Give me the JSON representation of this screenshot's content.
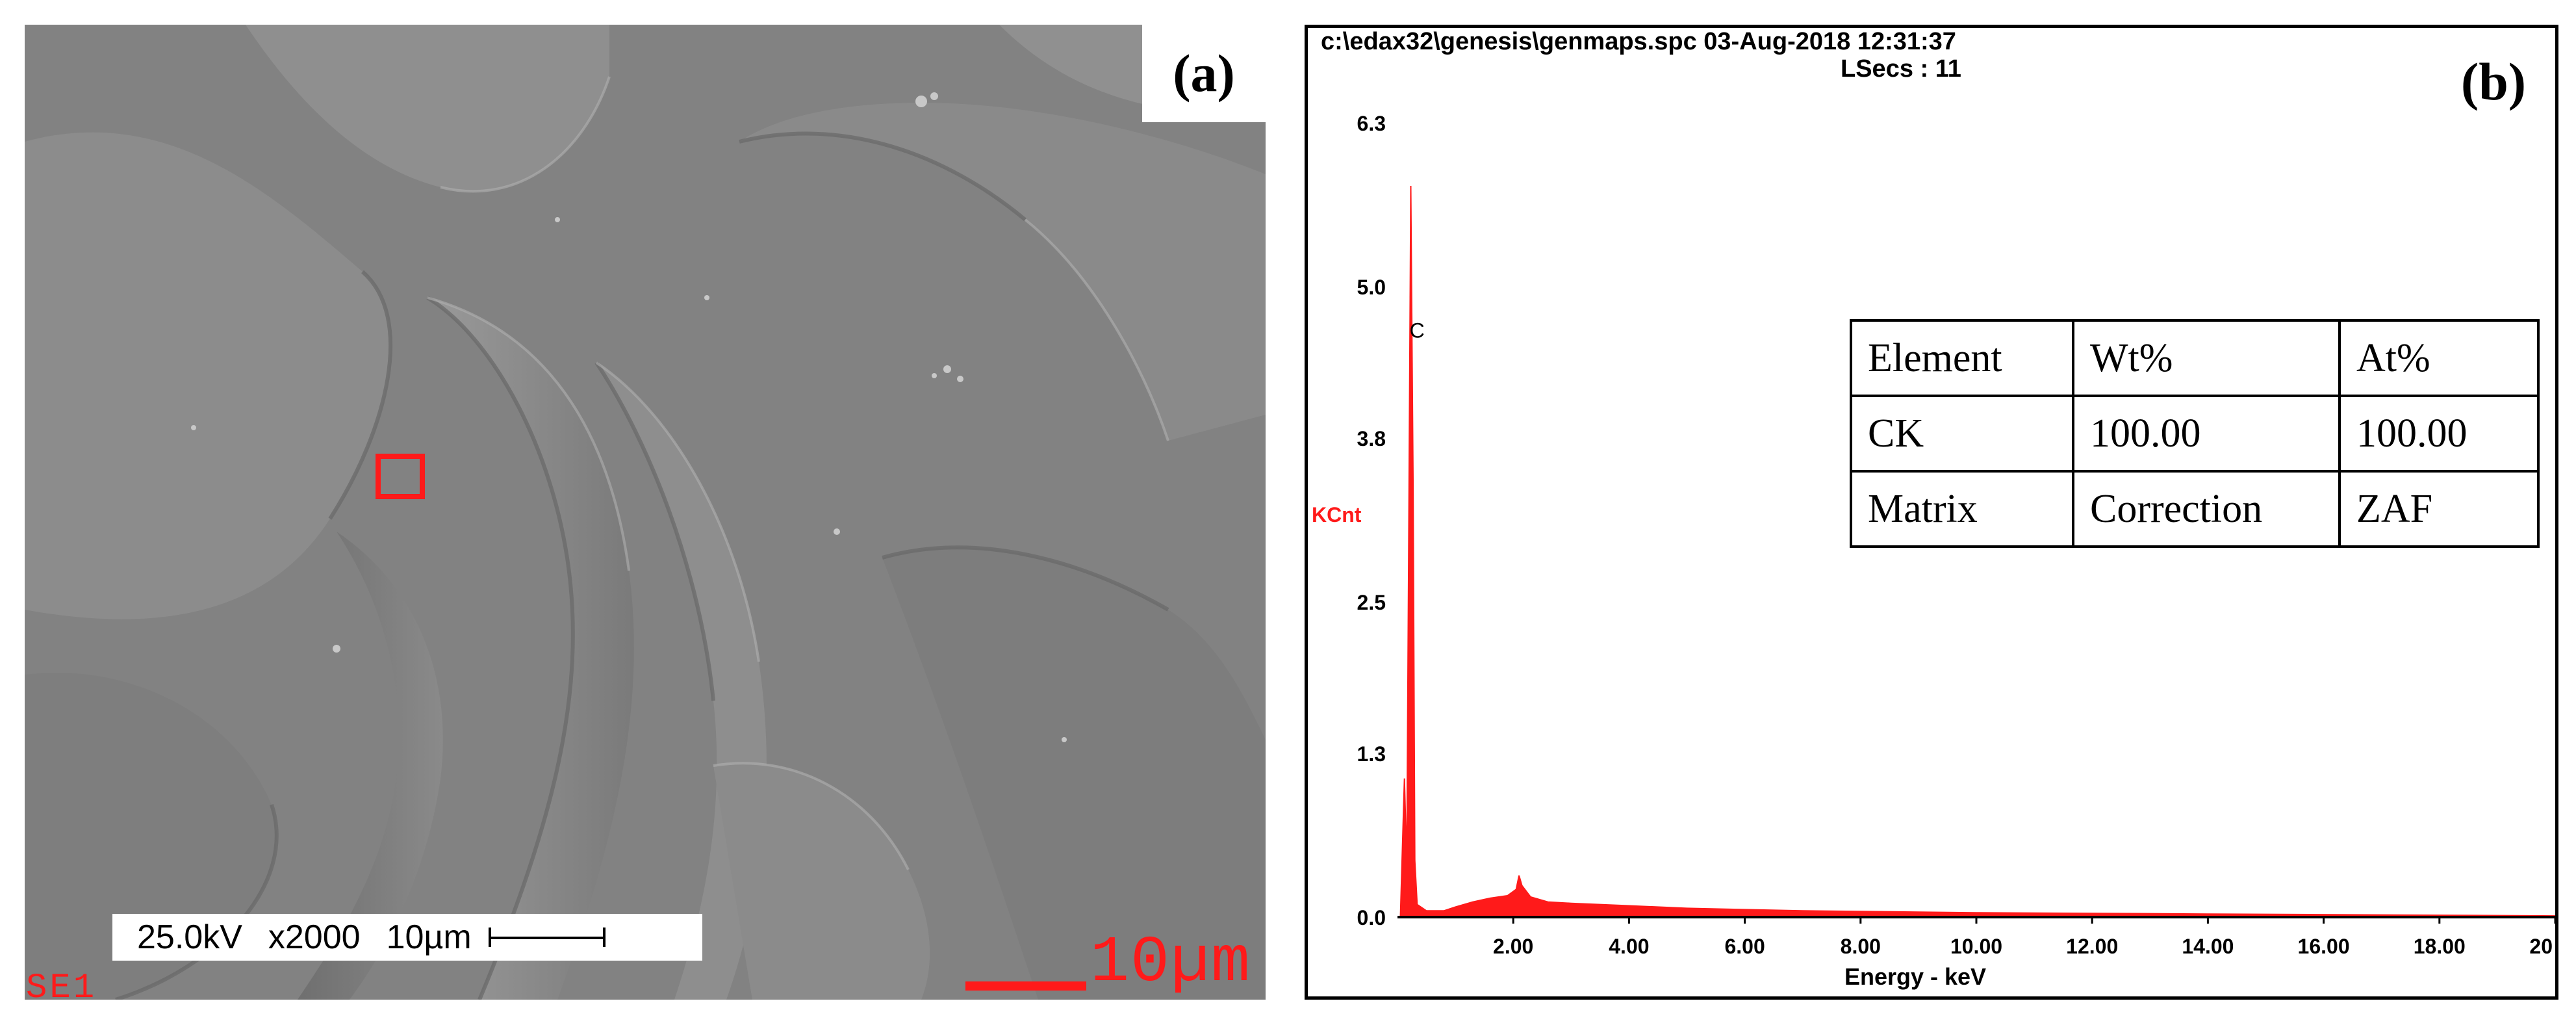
{
  "panel_a": {
    "label": "(a)",
    "info_bar": {
      "voltage": "25.0kV",
      "magnification": "x2000",
      "scale": "10µm"
    },
    "detector": "SE1",
    "scale_bar_label": "10µm",
    "colors": {
      "roi": "#ff1a1a",
      "surface": "#808080"
    }
  },
  "panel_b": {
    "label": "(b)",
    "file_line": "c:\\edax32\\genesis\\genmaps.spc  03-Aug-2018 12:31:37",
    "lsecs_line": "LSecs :  11",
    "table": {
      "rows": [
        [
          "Element",
          "Wt%",
          "At%"
        ],
        [
          "CK",
          "100.00",
          "100.00"
        ],
        [
          "Matrix",
          "Correction",
          "ZAF"
        ]
      ]
    }
  },
  "chart_data": {
    "type": "area",
    "title": "",
    "xlabel": "Energy - keV",
    "ylabel": "KCnt",
    "xlim": [
      0,
      20
    ],
    "ylim": [
      0,
      6.3
    ],
    "x_ticks": [
      "2.00",
      "4.00",
      "6.00",
      "8.00",
      "10.00",
      "12.00",
      "14.00",
      "16.00",
      "18.00",
      "20"
    ],
    "y_ticks": [
      "0.0",
      "1.3",
      "2.5",
      "3.8",
      "5.0",
      "6.3"
    ],
    "peaks": [
      {
        "label": "C",
        "energy": 0.277,
        "kcnt": 4.7
      }
    ],
    "series": [
      {
        "color": "#ff1a1a",
        "points": [
          [
            0.05,
            0
          ],
          [
            0.12,
            1.1
          ],
          [
            0.16,
            0.4
          ],
          [
            0.2,
            3.4
          ],
          [
            0.23,
            5.8
          ],
          [
            0.25,
            4.6
          ],
          [
            0.27,
            3.4
          ],
          [
            0.3,
            0.45
          ],
          [
            0.34,
            0.1
          ],
          [
            0.5,
            0.05
          ],
          [
            0.8,
            0.05
          ],
          [
            1.0,
            0.08
          ],
          [
            1.3,
            0.12
          ],
          [
            1.6,
            0.15
          ],
          [
            1.9,
            0.17
          ],
          [
            2.05,
            0.22
          ],
          [
            2.1,
            0.33
          ],
          [
            2.15,
            0.25
          ],
          [
            2.3,
            0.16
          ],
          [
            2.6,
            0.12
          ],
          [
            3.0,
            0.11
          ],
          [
            3.5,
            0.1
          ],
          [
            4.0,
            0.09
          ],
          [
            5.0,
            0.07
          ],
          [
            6.0,
            0.06
          ],
          [
            7.0,
            0.05
          ],
          [
            8.0,
            0.045
          ],
          [
            9.0,
            0.04
          ],
          [
            10.0,
            0.035
          ],
          [
            12.0,
            0.03
          ],
          [
            14.0,
            0.025
          ],
          [
            16.0,
            0.02
          ],
          [
            18.0,
            0.015
          ],
          [
            20.0,
            0.01
          ]
        ]
      }
    ]
  }
}
